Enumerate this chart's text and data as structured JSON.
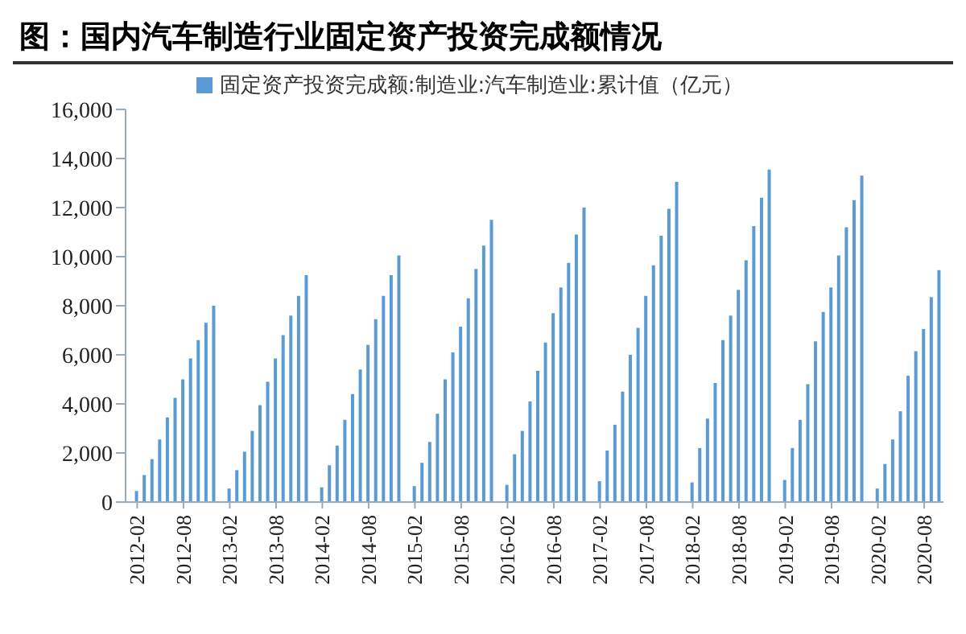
{
  "chart_data": {
    "type": "bar",
    "title": "图：国内汽车制造行业固定资产投资完成额情况",
    "categories": [
      null,
      "2012-02",
      null,
      null,
      null,
      null,
      null,
      "2012-08",
      null,
      null,
      null,
      null,
      null,
      "2013-02",
      null,
      null,
      null,
      null,
      null,
      "2013-08",
      null,
      null,
      null,
      null,
      null,
      "2014-02",
      null,
      null,
      null,
      null,
      null,
      "2014-08",
      null,
      null,
      null,
      null,
      null,
      "2015-02",
      null,
      null,
      null,
      null,
      null,
      "2015-08",
      null,
      null,
      null,
      null,
      null,
      "2016-02",
      null,
      null,
      null,
      null,
      null,
      "2016-08",
      null,
      null,
      null,
      null,
      null,
      "2017-02",
      null,
      null,
      null,
      null,
      null,
      "2017-08",
      null,
      null,
      null,
      null,
      null,
      "2018-02",
      null,
      null,
      null,
      null,
      null,
      "2018-08",
      null,
      null,
      null,
      null,
      null,
      "2019-02",
      null,
      null,
      null,
      null,
      null,
      "2019-08",
      null,
      null,
      null,
      null,
      null,
      "2020-02",
      null,
      null,
      null,
      null,
      null,
      "2020-08",
      null,
      null
    ],
    "series": [
      {
        "name": "固定资产投资完成额:制造业:汽车制造业:累计值（亿元）",
        "color": "#5b9bd5",
        "values": [
          null,
          450,
          1100,
          1750,
          2550,
          3450,
          4250,
          5000,
          5850,
          6600,
          7300,
          8000,
          null,
          550,
          1300,
          2050,
          2900,
          3950,
          4900,
          5850,
          6800,
          7600,
          8400,
          9250,
          null,
          600,
          1500,
          2300,
          3350,
          4400,
          5400,
          6400,
          7450,
          8400,
          9250,
          10050,
          null,
          650,
          1600,
          2450,
          3600,
          5000,
          6100,
          7150,
          8300,
          9500,
          10450,
          11500,
          null,
          700,
          1950,
          2900,
          4100,
          5350,
          6500,
          7700,
          8750,
          9750,
          10900,
          12000,
          null,
          850,
          2100,
          3150,
          4500,
          6000,
          7100,
          8400,
          9650,
          10850,
          11950,
          13050,
          null,
          800,
          2200,
          3400,
          4850,
          6600,
          7600,
          8650,
          9850,
          11250,
          12400,
          13550,
          null,
          900,
          2200,
          3350,
          4800,
          6550,
          7750,
          8750,
          10050,
          11200,
          12300,
          13300,
          null,
          550,
          1550,
          2550,
          3700,
          5150,
          6150,
          7050,
          8350,
          9450
        ]
      }
    ],
    "ylim": [
      0,
      16000
    ],
    "yticks": [
      0,
      {
        "value": 2000,
        "label": "2,000"
      },
      {
        "value": 4000,
        "label": "4,000"
      },
      {
        "value": 6000,
        "label": "6,000"
      },
      {
        "value": 8000,
        "label": "8,000"
      },
      {
        "value": 10000,
        "label": "10,000"
      },
      {
        "value": 12000,
        "label": "12,000"
      },
      {
        "value": 14000,
        "label": "14,000"
      },
      {
        "value": 16000,
        "label": "16,000"
      }
    ],
    "grid": false,
    "legend": "top"
  }
}
